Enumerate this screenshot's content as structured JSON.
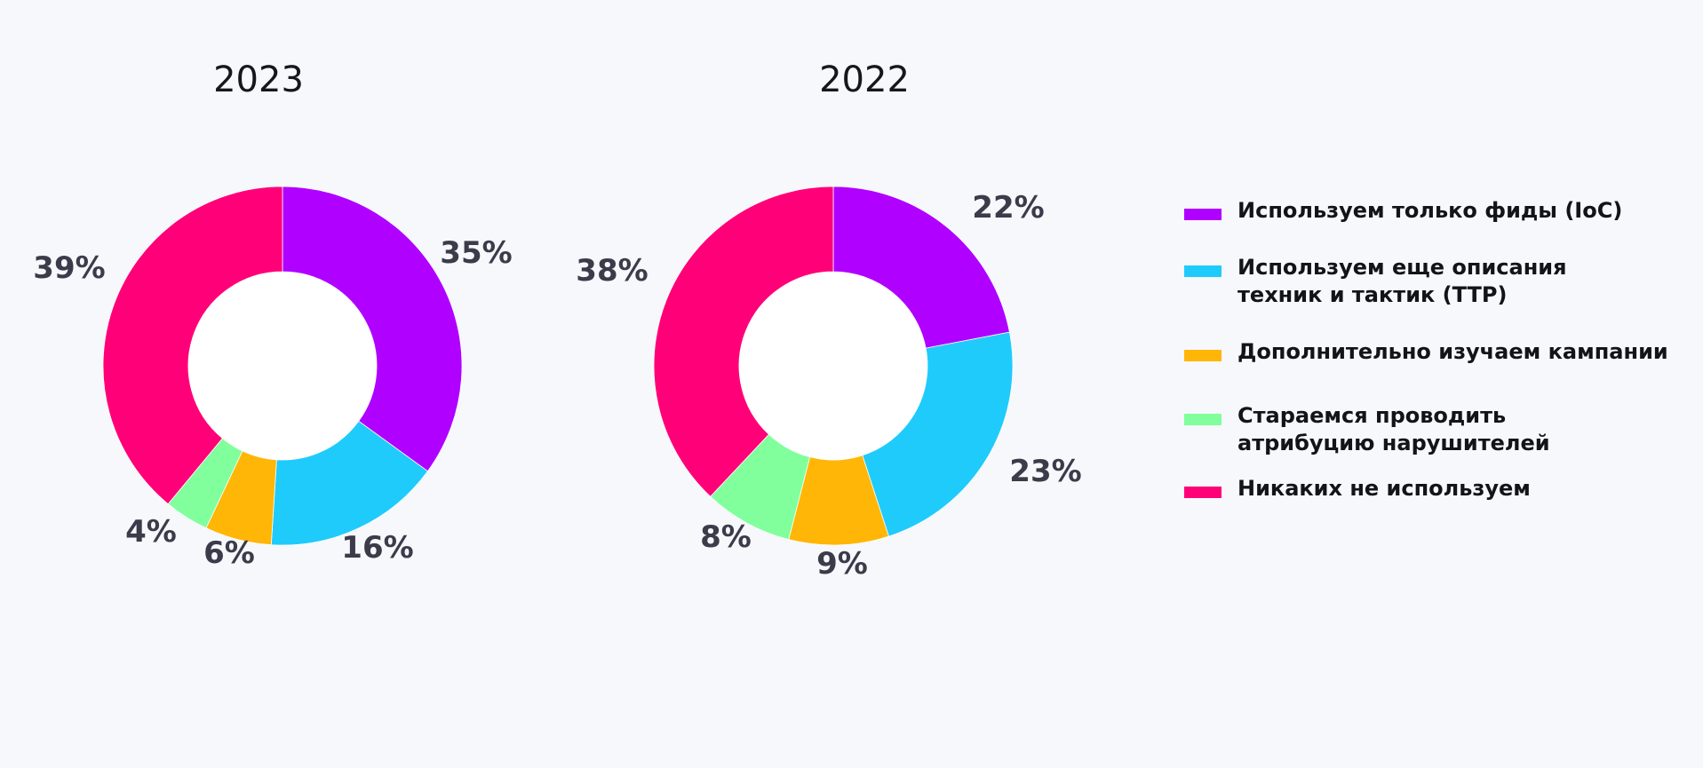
{
  "chart_data": [
    {
      "type": "pie",
      "title": "2023",
      "categories": [
        "Используем только фиды (IoC)",
        "Используем еще описания техник и тактик (TTP)",
        "Дополнительно изучаем кампании",
        "Стараемся проводить атрибуцию нарушителей",
        "Никаких не используем"
      ],
      "values": [
        35,
        16,
        6,
        4,
        39
      ],
      "labels": [
        "35%",
        "16%",
        "6%",
        "4%",
        "39%"
      ]
    },
    {
      "type": "pie",
      "title": "2022",
      "categories": [
        "Используем только фиды (IoC)",
        "Используем еще описания техник и тактик (TTP)",
        "Дополнительно изучаем кампании",
        "Стараемся проводить атрибуцию нарушителей",
        "Никаких не используем"
      ],
      "values": [
        22,
        23,
        9,
        8,
        38
      ],
      "labels": [
        "22%",
        "23%",
        "9%",
        "8%",
        "38%"
      ]
    }
  ],
  "colors": [
    "#b000ff",
    "#1fcbfb",
    "#ffb607",
    "#80ff9c",
    "#ff0078"
  ],
  "legend": {
    "placement": "right",
    "items": [
      {
        "label": "Используем только фиды (IoC)",
        "color": "#b000ff"
      },
      {
        "label": "Используем еще описания техник и тактик (TTP)",
        "color": "#1fcbfb"
      },
      {
        "label": "Дополнительно изучаем кампании",
        "color": "#ffb607"
      },
      {
        "label": "Стараемся проводить атрибуцию нарушителей",
        "color": "#80ff9c"
      },
      {
        "label": "Никаких не используем",
        "color": "#ff0078"
      }
    ]
  }
}
